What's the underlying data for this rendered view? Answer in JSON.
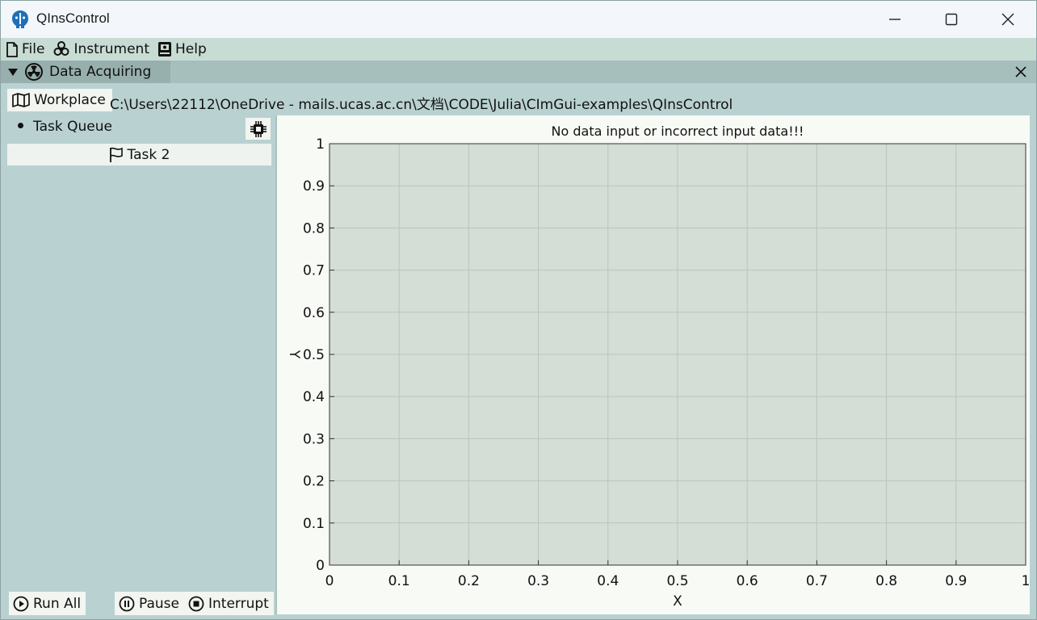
{
  "window": {
    "title": "QInsControl",
    "controls": [
      "minimize-icon",
      "maximize-icon",
      "close-icon"
    ]
  },
  "menubar": {
    "items": [
      {
        "label": "File",
        "icon": "file-icon"
      },
      {
        "label": "Instrument",
        "icon": "biohazard-icon"
      },
      {
        "label": "Help",
        "icon": "help-book-icon"
      }
    ]
  },
  "dock": {
    "tab_label": "Data Acquiring",
    "tab_icon": "radiation-icon",
    "close_icon": "close-icon"
  },
  "workplace": {
    "button_label": "Workplace",
    "button_icon": "map-icon",
    "path": "C:\\Users\\22112\\OneDrive - mails.ucas.ac.cn\\文档\\CODE\\Julia\\CImGui-examples\\QInsControl"
  },
  "task_queue": {
    "header": "Task Queue",
    "settings_icon": "chip-icon",
    "tasks": [
      {
        "label": "Task 2",
        "icon": "flag-icon"
      }
    ]
  },
  "controls": {
    "run_all": "Run All",
    "pause": "Pause",
    "interrupt": "Interrupt"
  },
  "colors": {
    "panel_bg": "#b9d2d1",
    "plot_area_bg": "#d4ded7",
    "plot_frame_bg": "#f8faf6",
    "button_bg": "#f3f5f1",
    "dock_tab_bg": "#97b0ad"
  },
  "chart_data": {
    "type": "line",
    "title": "No data input or incorrect input data!!!",
    "xlabel": "X",
    "ylabel": "Y",
    "xlim": [
      0,
      1
    ],
    "ylim": [
      0,
      1
    ],
    "x_ticks": [
      "0",
      "0.1",
      "0.2",
      "0.3",
      "0.4",
      "0.5",
      "0.6",
      "0.7",
      "0.8",
      "0.9",
      "1"
    ],
    "y_ticks": [
      "0",
      "0.1",
      "0.2",
      "0.3",
      "0.4",
      "0.5",
      "0.6",
      "0.7",
      "0.8",
      "0.9",
      "1"
    ],
    "grid": true,
    "series": []
  }
}
